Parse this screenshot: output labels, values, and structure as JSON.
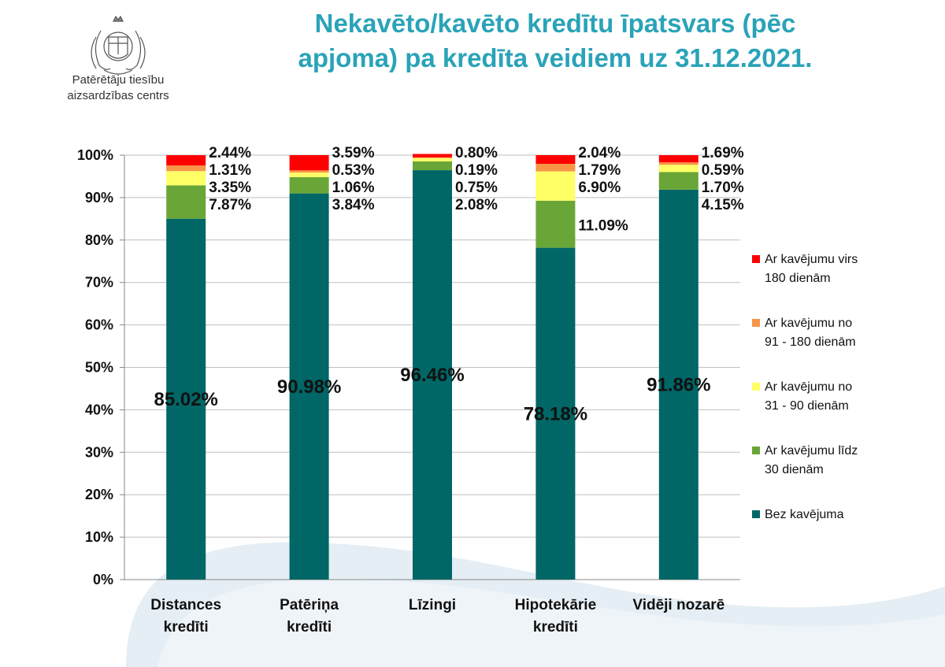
{
  "org": {
    "line1": "Patērētāju tiesību",
    "line2": "aizsardzības centrs"
  },
  "title": {
    "line1": "Nekavēto/kavēto kredītu īpatsvars (pēc",
    "line2": "apjoma) pa kredīta veidiem uz 31.12.2021."
  },
  "chart_data": {
    "type": "bar",
    "stacked": true,
    "categories": [
      [
        "Distances",
        "kredīti"
      ],
      [
        "Patēriņa",
        "kredīti"
      ],
      [
        "Līzingi"
      ],
      [
        "Hipotekārie",
        "kredīti"
      ],
      [
        "Vidēji nozarē"
      ]
    ],
    "ylim": [
      0,
      100
    ],
    "yticks": [
      0,
      10,
      20,
      30,
      40,
      50,
      60,
      70,
      80,
      90,
      100
    ],
    "ytick_format": "{v}%",
    "grid": true,
    "legend": "right",
    "series": [
      {
        "name": "Bez kavējuma",
        "color": "#006666",
        "values": [
          85.02,
          90.98,
          96.46,
          78.18,
          91.86
        ],
        "labels": [
          "85.02%",
          "90.98%",
          "96.46%",
          "78.18%",
          "91.86%"
        ]
      },
      {
        "name": "Ar kavējumu līdz 30 dienām",
        "color": "#6aa637",
        "values": [
          7.87,
          3.84,
          2.08,
          11.09,
          4.15
        ],
        "labels": [
          "7.87%",
          "3.84%",
          "2.08%",
          "11.09%",
          "4.15%"
        ]
      },
      {
        "name": "Ar kavējumu no 31 - 90 dienām",
        "color": "#ffff66",
        "values": [
          3.35,
          1.06,
          0.75,
          6.9,
          1.7
        ],
        "labels": [
          "3.35%",
          "1.06%",
          "0.75%",
          "6.90%",
          "1.70%"
        ]
      },
      {
        "name": "Ar kavējumu no 91 - 180 dienām",
        "color": "#f79646",
        "values": [
          1.31,
          0.53,
          0.19,
          1.79,
          0.59
        ],
        "labels": [
          "1.31%",
          "0.53%",
          "0.19%",
          "1.79%",
          "0.59%"
        ]
      },
      {
        "name": "Ar kavējumu virs 180 dienām",
        "color": "#ff0000",
        "values": [
          2.44,
          3.59,
          0.8,
          2.04,
          1.69
        ],
        "labels": [
          "2.44%",
          "3.59%",
          "0.80%",
          "2.04%",
          "1.69%"
        ]
      }
    ],
    "legend_entries": [
      {
        "lines": [
          "Ar kavējumu virs",
          "180 dienām"
        ],
        "color": "#ff0000"
      },
      {
        "lines": [
          "Ar kavējumu no",
          "91 - 180 dienām"
        ],
        "color": "#f79646"
      },
      {
        "lines": [
          "Ar kavējumu no",
          "31 - 90 dienām"
        ],
        "color": "#ffff66"
      },
      {
        "lines": [
          "Ar kavējumu līdz",
          "30 dienām"
        ],
        "color": "#6aa637"
      },
      {
        "lines": [
          "Bez kavējuma"
        ],
        "color": "#006666"
      }
    ]
  }
}
